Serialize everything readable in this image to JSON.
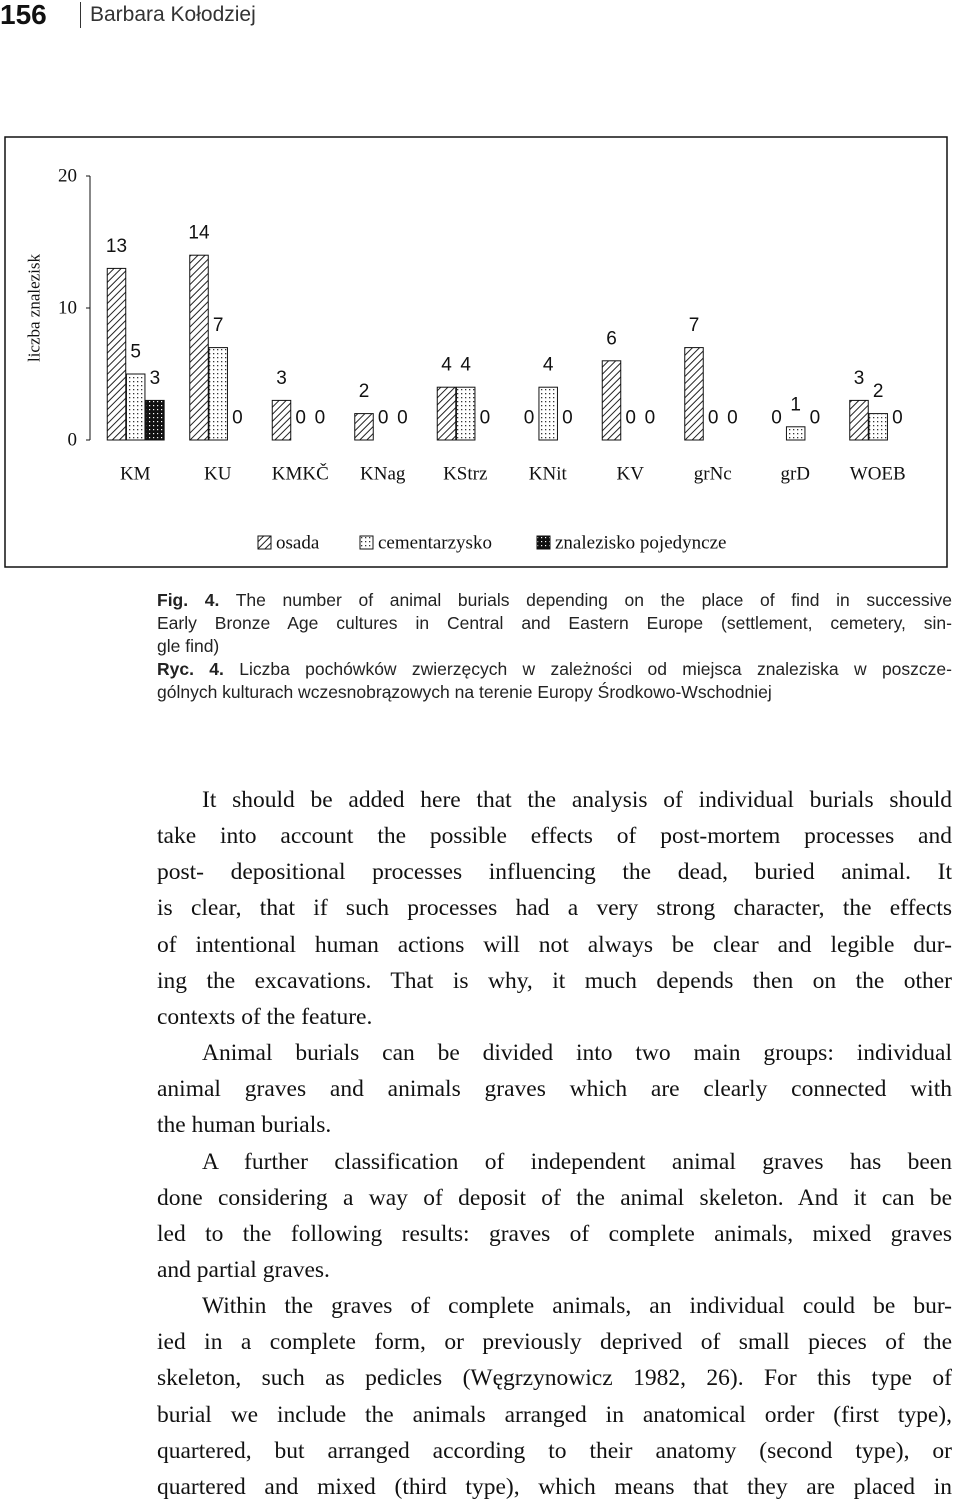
{
  "header": {
    "page_number": "156",
    "author": "Barbara Kołodziej"
  },
  "chart_data": {
    "type": "bar",
    "y_label": "liczba znalezisk",
    "categories": [
      "KM",
      "KU",
      "KMKČ",
      "KNag",
      "KStrz",
      "KNit",
      "KV",
      "grNc",
      "grD",
      "WOEB"
    ],
    "series": [
      {
        "name": "osada",
        "values": [
          13,
          14,
          3,
          2,
          4,
          0,
          6,
          7,
          0,
          3
        ]
      },
      {
        "name": "cementarzysko",
        "values": [
          5,
          7,
          0,
          0,
          4,
          4,
          0,
          0,
          1,
          2
        ]
      },
      {
        "name": "znalezisko pojedyncze",
        "values": [
          3,
          0,
          0,
          0,
          0,
          0,
          0,
          0,
          0,
          0
        ]
      }
    ],
    "ylim": [
      0,
      20
    ],
    "yticks": [
      0,
      10,
      20
    ],
    "grid": false,
    "legend": "bottom"
  },
  "caption_en": {
    "label": "Fig. 4.",
    "lines": [
      "The number of animal burials depending on the place of find in successive",
      "Early Bronze Age cultures in Central and Eastern Europe (settlement, cemetery, sin-",
      "gle find)"
    ]
  },
  "caption_pl": {
    "label": "Ryc. 4.",
    "lines": [
      "Liczba pochówków zwierzęcych w zależności od miejsca znaleziska w poszcze-",
      "gólnych kulturach wczesnobrązowych na terenie Europy Środkowo-Wschodniej"
    ]
  },
  "body": {
    "paragraphs": [
      {
        "lines": [
          "It should be added here that the analysis of individual burials should",
          "take into account the possible effects of post-mortem processes and",
          "post- depositional processes influencing the dead, buried animal. It",
          "is clear, that if such processes had a very strong character, the effects",
          "of intentional human actions will not always be clear and legible dur-",
          "ing the excavations. That is why, it much depends then on the other",
          "contexts of the feature."
        ]
      },
      {
        "lines": [
          "Animal burials can be divided into two main groups: individual",
          "animal graves and animals graves which are clearly connected with",
          "the human burials."
        ]
      },
      {
        "lines": [
          "A further classification of independent animal graves has been",
          "done considering a way of deposit of the animal skeleton. And it can be",
          "led to the following results: graves of complete animals, mixed graves",
          "and partial graves."
        ]
      },
      {
        "continues": true,
        "lines": [
          "Within the graves of complete animals, an individual could be bur-",
          "ied in a complete form, or previously deprived of small pieces of the",
          "skeleton, such as pedicles (Węgrzynowicz 1982, 26). For this type of",
          "burial we include the animals arranged in anatomical order (first type),",
          "quartered, but arranged according to their anatomy (second type), or",
          "quartered and mixed (third type), which means that they are placed in"
        ]
      }
    ]
  }
}
